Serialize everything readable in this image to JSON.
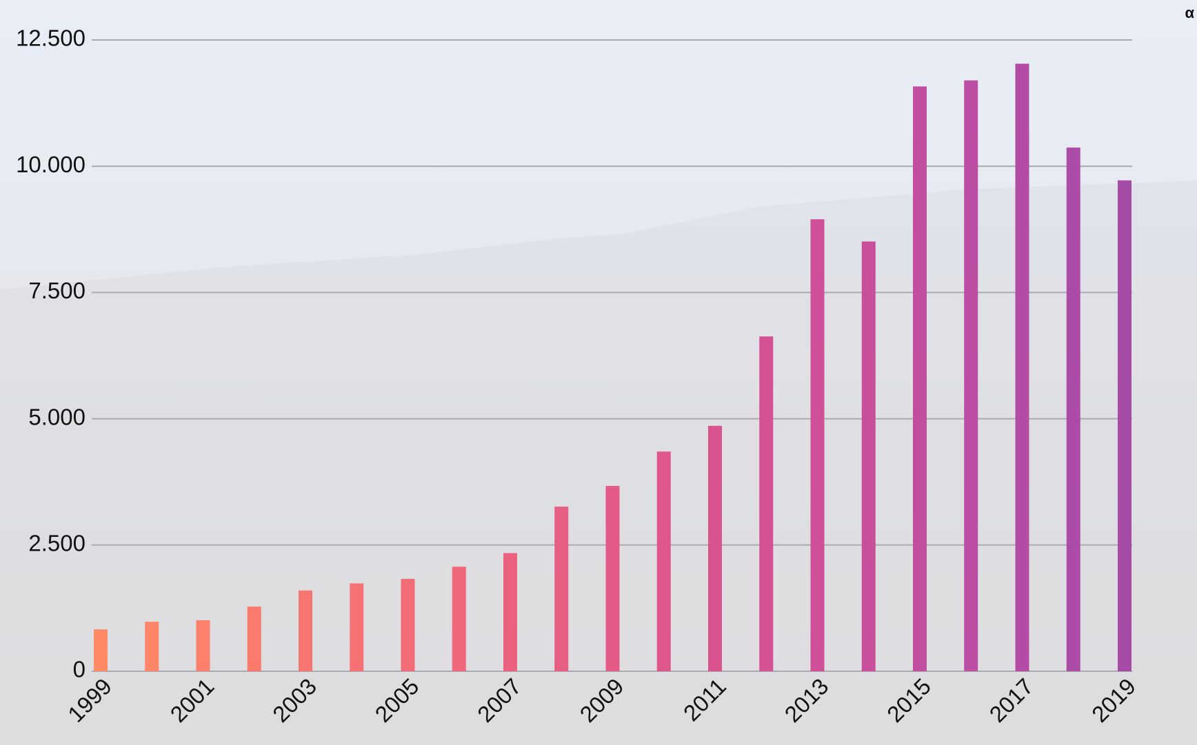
{
  "chart_data": {
    "type": "bar",
    "annotation": "α",
    "categories": [
      "1999",
      null,
      "2001",
      null,
      "2003",
      null,
      "2005",
      null,
      "2007",
      null,
      "2009",
      null,
      "2011",
      null,
      "2013",
      null,
      "2015",
      null,
      "2017",
      null,
      "2019"
    ],
    "values": [
      830,
      980,
      1010,
      1280,
      1600,
      1740,
      1830,
      2070,
      2340,
      3260,
      3670,
      4350,
      4860,
      6630,
      8950,
      8510,
      11580,
      11700,
      12030,
      10370,
      9720
    ],
    "colors": [
      "#ff8a65",
      "#fe8568",
      "#fc806b",
      "#fa7b6e",
      "#f87671",
      "#f57174",
      "#f26c78",
      "#ef677b",
      "#eb627f",
      "#e75e83",
      "#e35a87",
      "#de568b",
      "#d9538f",
      "#d45194",
      "#cf5098",
      "#c94f9c",
      "#c24ea0",
      "#bb4da3",
      "#b44ca5",
      "#ad4ca6",
      "#a64ca6"
    ],
    "ylim": [
      0,
      12500
    ],
    "yticks": [
      0,
      {
        "value": 2500,
        "label": "2.500"
      },
      {
        "value": 5000,
        "label": "5.000"
      },
      {
        "value": 7500,
        "label": "7.500"
      },
      {
        "value": 10000,
        "label": "10.000"
      },
      {
        "value": 12500,
        "label": "12.500"
      }
    ],
    "grid": true
  }
}
